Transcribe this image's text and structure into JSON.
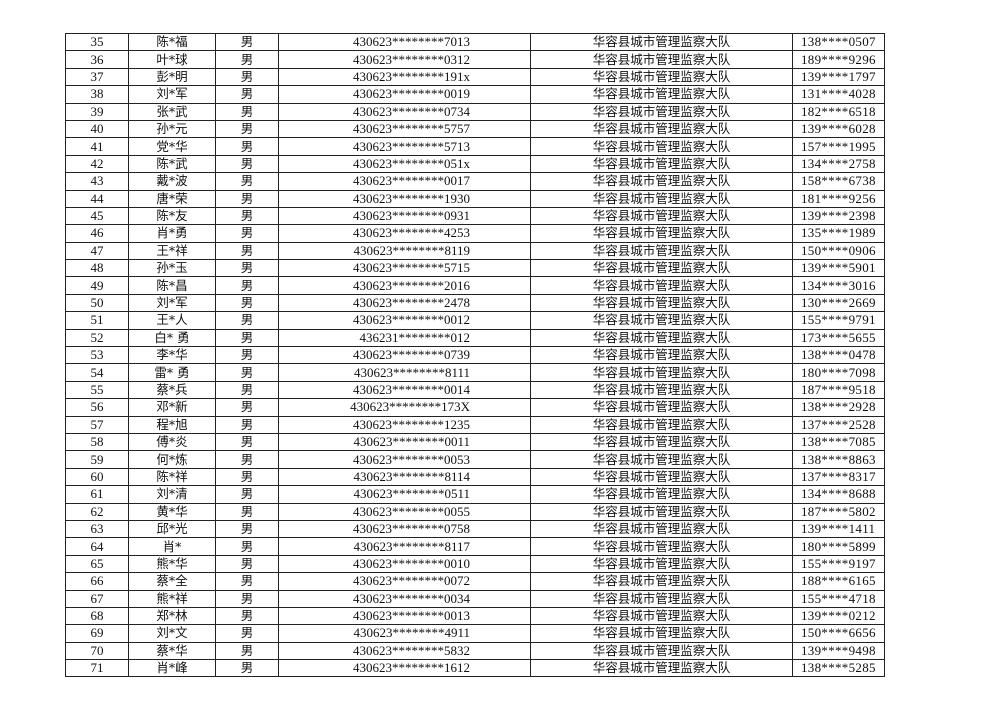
{
  "table": {
    "rows": [
      {
        "no": "35",
        "name": "陈*福",
        "gender": "男",
        "id": "430623********7013",
        "unit": "华容县城市管理监察大队",
        "phone": "138****0507"
      },
      {
        "no": "36",
        "name": "叶*球",
        "gender": "男",
        "id": "430623********0312",
        "unit": "华容县城市管理监察大队",
        "phone": "189****9296"
      },
      {
        "no": "37",
        "name": "彭*明",
        "gender": "男",
        "id": "430623********191x",
        "unit": "华容县城市管理监察大队",
        "phone": "139****1797"
      },
      {
        "no": "38",
        "name": "刘*军",
        "gender": "男",
        "id": "430623********0019",
        "unit": "华容县城市管理监察大队",
        "phone": "131****4028"
      },
      {
        "no": "39",
        "name": "张*武",
        "gender": "男",
        "id": "430623********0734",
        "unit": "华容县城市管理监察大队",
        "phone": "182****6518"
      },
      {
        "no": "40",
        "name": "孙*元",
        "gender": "男",
        "id": "430623********5757",
        "unit": "华容县城市管理监察大队",
        "phone": "139****6028"
      },
      {
        "no": "41",
        "name": "党*华",
        "gender": "男",
        "id": "430623********5713",
        "unit": "华容县城市管理监察大队",
        "phone": "157****1995"
      },
      {
        "no": "42",
        "name": "陈*武",
        "gender": "男",
        "id": "430623********051x",
        "unit": "华容县城市管理监察大队",
        "phone": "134****2758"
      },
      {
        "no": "43",
        "name": "戴*波",
        "gender": "男",
        "id": "430623********0017",
        "unit": "华容县城市管理监察大队",
        "phone": "158****6738"
      },
      {
        "no": "44",
        "name": "唐*荣",
        "gender": "男",
        "id": "430623********1930",
        "unit": "华容县城市管理监察大队",
        "phone": "181****9256"
      },
      {
        "no": "45",
        "name": "陈*友",
        "gender": "男",
        "id": "430623********0931",
        "unit": "华容县城市管理监察大队",
        "phone": "139****2398"
      },
      {
        "no": "46",
        "name": "肖*勇",
        "gender": "男",
        "id": "430623********4253",
        "unit": "华容县城市管理监察大队",
        "phone": "135****1989"
      },
      {
        "no": "47",
        "name": "王*祥",
        "gender": "男",
        "id": "430623********8119",
        "unit": "华容县城市管理监察大队",
        "phone": "150****0906"
      },
      {
        "no": "48",
        "name": "孙*玉",
        "gender": "男",
        "id": "430623********5715",
        "unit": "华容县城市管理监察大队",
        "phone": "139****5901"
      },
      {
        "no": "49",
        "name": "陈*昌",
        "gender": "男",
        "id": "430623********2016",
        "unit": "华容县城市管理监察大队",
        "phone": "134****3016"
      },
      {
        "no": "50",
        "name": "刘*军",
        "gender": "男",
        "id": "430623********2478",
        "unit": "华容县城市管理监察大队",
        "phone": "130****2669"
      },
      {
        "no": "51",
        "name": "王*人",
        "gender": "男",
        "id": "430623********0012",
        "unit": "华容县城市管理监察大队",
        "phone": "155****9791"
      },
      {
        "no": "52",
        "name": "白* 勇",
        "gender": "男",
        "id": "436231********012",
        "unit": "华容县城市管理监察大队",
        "phone": "173****5655"
      },
      {
        "no": "53",
        "name": "李*华",
        "gender": "男",
        "id": "430623********0739",
        "unit": "华容县城市管理监察大队",
        "phone": "138****0478"
      },
      {
        "no": "54",
        "name": "雷* 勇",
        "gender": "男",
        "id": "430623********8111",
        "unit": "华容县城市管理监察大队",
        "phone": "180****7098"
      },
      {
        "no": "55",
        "name": "蔡*兵",
        "gender": "男",
        "id": "430623********0014",
        "unit": "华容县城市管理监察大队",
        "phone": "187****9518"
      },
      {
        "no": "56",
        "name": "邓*新",
        "gender": "男",
        "id": "430623********173X",
        "unit": "华容县城市管理监察大队",
        "phone": "138****2928"
      },
      {
        "no": "57",
        "name": "程*旭",
        "gender": "男",
        "id": "430623********1235",
        "unit": "华容县城市管理监察大队",
        "phone": "137****2528"
      },
      {
        "no": "58",
        "name": "傅*炎",
        "gender": "男",
        "id": "430623********0011",
        "unit": "华容县城市管理监察大队",
        "phone": "138****7085"
      },
      {
        "no": "59",
        "name": "何*炼",
        "gender": "男",
        "id": "430623********0053",
        "unit": "华容县城市管理监察大队",
        "phone": "138****8863"
      },
      {
        "no": "60",
        "name": "陈*祥",
        "gender": "男",
        "id": "430623********8114",
        "unit": "华容县城市管理监察大队",
        "phone": "137****8317"
      },
      {
        "no": "61",
        "name": "刘*清",
        "gender": "男",
        "id": "430623********0511",
        "unit": "华容县城市管理监察大队",
        "phone": "134****8688"
      },
      {
        "no": "62",
        "name": "黄*华",
        "gender": "男",
        "id": "430623********0055",
        "unit": "华容县城市管理监察大队",
        "phone": "187****5802"
      },
      {
        "no": "63",
        "name": "邱*光",
        "gender": "男",
        "id": "430623********0758",
        "unit": "华容县城市管理监察大队",
        "phone": "139****1411"
      },
      {
        "no": "64",
        "name": "肖*",
        "gender": "男",
        "id": "430623********8117",
        "unit": "华容县城市管理监察大队",
        "phone": "180****5899"
      },
      {
        "no": "65",
        "name": "熊*华",
        "gender": "男",
        "id": "430623********0010",
        "unit": "华容县城市管理监察大队",
        "phone": "155****9197"
      },
      {
        "no": "66",
        "name": "蔡*全",
        "gender": "男",
        "id": "430623********0072",
        "unit": "华容县城市管理监察大队",
        "phone": "188****6165"
      },
      {
        "no": "67",
        "name": "熊*祥",
        "gender": "男",
        "id": "430623********0034",
        "unit": "华容县城市管理监察大队",
        "phone": "155****4718"
      },
      {
        "no": "68",
        "name": "郑*林",
        "gender": "男",
        "id": "430623********0013",
        "unit": "华容县城市管理监察大队",
        "phone": "139****0212"
      },
      {
        "no": "69",
        "name": "刘*文",
        "gender": "男",
        "id": "430623********4911",
        "unit": "华容县城市管理监察大队",
        "phone": "150****6656"
      },
      {
        "no": "70",
        "name": "蔡*华",
        "gender": "男",
        "id": "430623********5832",
        "unit": "华容县城市管理监察大队",
        "phone": "139****9498"
      },
      {
        "no": "71",
        "name": "肖*峰",
        "gender": "男",
        "id": "430623********1612",
        "unit": "华容县城市管理监察大队",
        "phone": "138****5285"
      }
    ]
  }
}
